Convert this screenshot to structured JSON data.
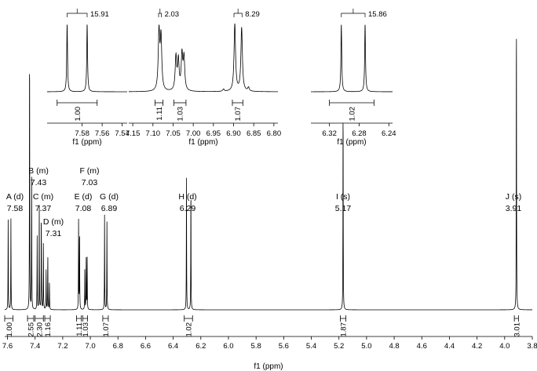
{
  "chart_data": {
    "type": "line",
    "xlabel": "f1 (ppm)",
    "x_reversed": true,
    "xlim": [
      7.62,
      3.8
    ],
    "x_ticks": [
      "7.6",
      "7.4",
      "7.2",
      "7.0",
      "6.8",
      "6.6",
      "6.4",
      "6.2",
      "6.0",
      "5.8",
      "5.6",
      "5.4",
      "5.2",
      "5.0",
      "4.8",
      "4.6",
      "4.4",
      "4.2",
      "4.0",
      "3.8"
    ],
    "peaks": [
      {
        "ppm": 7.595,
        "h": 0.3
      },
      {
        "ppm": 7.575,
        "h": 0.3
      },
      {
        "ppm": 7.44,
        "h": 0.9
      },
      {
        "ppm": 7.425,
        "h": 0.44
      },
      {
        "ppm": 7.385,
        "h": 0.24
      },
      {
        "ppm": 7.37,
        "h": 0.35
      },
      {
        "ppm": 7.355,
        "h": 0.33
      },
      {
        "ppm": 7.34,
        "h": 0.22
      },
      {
        "ppm": 7.32,
        "h": 0.13
      },
      {
        "ppm": 7.308,
        "h": 0.18
      },
      {
        "ppm": 7.296,
        "h": 0.09
      },
      {
        "ppm": 7.085,
        "h": 0.3
      },
      {
        "ppm": 7.078,
        "h": 0.27
      },
      {
        "ppm": 7.04,
        "h": 0.14
      },
      {
        "ppm": 7.03,
        "h": 0.17
      },
      {
        "ppm": 7.023,
        "h": 0.17
      },
      {
        "ppm": 6.897,
        "h": 0.31
      },
      {
        "ppm": 6.88,
        "h": 0.29
      },
      {
        "ppm": 6.304,
        "h": 0.43
      },
      {
        "ppm": 6.272,
        "h": 0.42
      },
      {
        "ppm": 5.17,
        "h": 0.7
      },
      {
        "ppm": 3.915,
        "h": 1.0
      }
    ],
    "peak_labels": [
      {
        "name": "A (d)",
        "value": "7.58"
      },
      {
        "name": "B (m)",
        "value": "7.43"
      },
      {
        "name": "C (m)",
        "value": "7.37"
      },
      {
        "name": "D (m)",
        "value": "7.31"
      },
      {
        "name": "E (d)",
        "value": "7.08"
      },
      {
        "name": "F (m)",
        "value": "7.03"
      },
      {
        "name": "G (d)",
        "value": "6.89"
      },
      {
        "name": "H (d)",
        "value": "6.29"
      },
      {
        "name": "I (s)",
        "value": "5.17"
      },
      {
        "name": "J (s)",
        "value": "3.91"
      }
    ],
    "integrals": [
      {
        "value": "1.00",
        "range": [
          7.62,
          7.56
        ]
      },
      {
        "value": "2.55",
        "range": [
          7.455,
          7.41
        ]
      },
      {
        "value": "2.30",
        "range": [
          7.4,
          7.34
        ]
      },
      {
        "value": "1.16",
        "range": [
          7.33,
          7.29
        ]
      },
      {
        "value": "1.11",
        "range": [
          7.1,
          7.065
        ]
      },
      {
        "value": "1.03",
        "range": [
          7.055,
          7.02
        ]
      },
      {
        "value": "1.07",
        "range": [
          6.91,
          6.87
        ]
      },
      {
        "value": "1.02",
        "range": [
          6.32,
          6.26
        ]
      },
      {
        "value": "1.87",
        "range": [
          5.19,
          5.15
        ]
      },
      {
        "value": "3.01",
        "range": [
          3.93,
          3.9
        ]
      }
    ],
    "insets": [
      {
        "xlabel": "f1 (ppm)",
        "xlim": [
          7.615,
          7.535
        ],
        "ticks": [
          "7.58",
          "7.56",
          "7.54"
        ],
        "coupling": "15.91",
        "integral": "1.00",
        "integral_range": [
          7.605,
          7.565
        ],
        "peaks": [
          {
            "ppm": 7.595,
            "h": 0.9
          },
          {
            "ppm": 7.575,
            "h": 0.9
          }
        ]
      },
      {
        "xlabel": "f1 (ppm)",
        "xlim": [
          7.16,
          6.79
        ],
        "ticks": [
          "7.15",
          "7.10",
          "7.05",
          "7.00",
          "6.95",
          "6.90",
          "6.85",
          "6.80"
        ],
        "couplings": [
          "2.03",
          "8.29"
        ],
        "integrals": [
          {
            "value": "1.11",
            "range": [
              7.095,
              7.075
            ]
          },
          {
            "value": "1.03",
            "range": [
              7.048,
              7.018
            ]
          },
          {
            "value": "1.07",
            "range": [
              6.903,
              6.877
            ]
          }
        ],
        "peaks": [
          {
            "ppm": 7.085,
            "h": 0.78
          },
          {
            "ppm": 7.08,
            "h": 0.7
          },
          {
            "ppm": 7.043,
            "h": 0.45
          },
          {
            "ppm": 7.037,
            "h": 0.4
          },
          {
            "ppm": 7.028,
            "h": 0.47
          },
          {
            "ppm": 7.023,
            "h": 0.43
          },
          {
            "ppm": 6.897,
            "h": 0.9
          },
          {
            "ppm": 6.88,
            "h": 0.85
          },
          {
            "ppm": 6.925,
            "h": 0.03
          },
          {
            "ppm": 6.863,
            "h": 0.05
          }
        ]
      },
      {
        "xlabel": "f1 (ppm)",
        "xlim": [
          6.345,
          6.235
        ],
        "ticks": [
          "6.32",
          "6.28",
          "6.24"
        ],
        "coupling": "15.86",
        "integral": "1.02",
        "integral_range": [
          6.32,
          6.26
        ],
        "peaks": [
          {
            "ppm": 6.304,
            "h": 0.9
          },
          {
            "ppm": 6.272,
            "h": 0.9
          }
        ]
      }
    ]
  }
}
